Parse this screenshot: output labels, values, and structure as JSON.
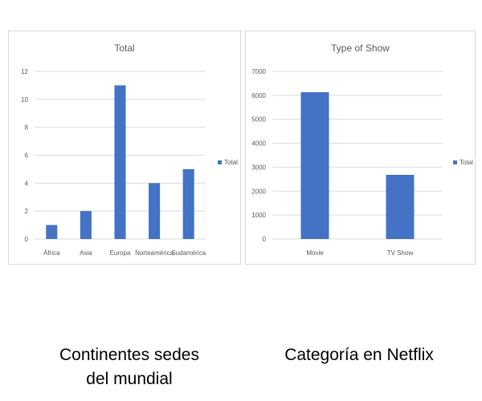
{
  "chart_data": [
    {
      "type": "bar",
      "title": "Total",
      "categories": [
        "África",
        "Asia",
        "Europa",
        "Norteamérica",
        "Sudamérica"
      ],
      "series": [
        {
          "name": "Total",
          "values": [
            1,
            2,
            11,
            4,
            5
          ]
        }
      ],
      "ylim": [
        0,
        12
      ],
      "yticks": [
        0,
        2,
        4,
        6,
        8,
        10,
        12
      ],
      "grid": true,
      "legend": "right",
      "color": "#4472c4"
    },
    {
      "type": "bar",
      "title": "Type of Show",
      "categories": [
        "Movie",
        "TV Show"
      ],
      "series": [
        {
          "name": "Total",
          "values": [
            6130,
            2680
          ]
        }
      ],
      "ylim": [
        0,
        7000
      ],
      "yticks": [
        0,
        1000,
        2000,
        3000,
        4000,
        5000,
        6000,
        7000
      ],
      "grid": true,
      "legend": "right",
      "color": "#4472c4"
    }
  ],
  "captions": {
    "left": {
      "line1": "Continentes sedes",
      "line2": "del mundial"
    },
    "right": {
      "line1": "Categoría en Netflix"
    }
  }
}
